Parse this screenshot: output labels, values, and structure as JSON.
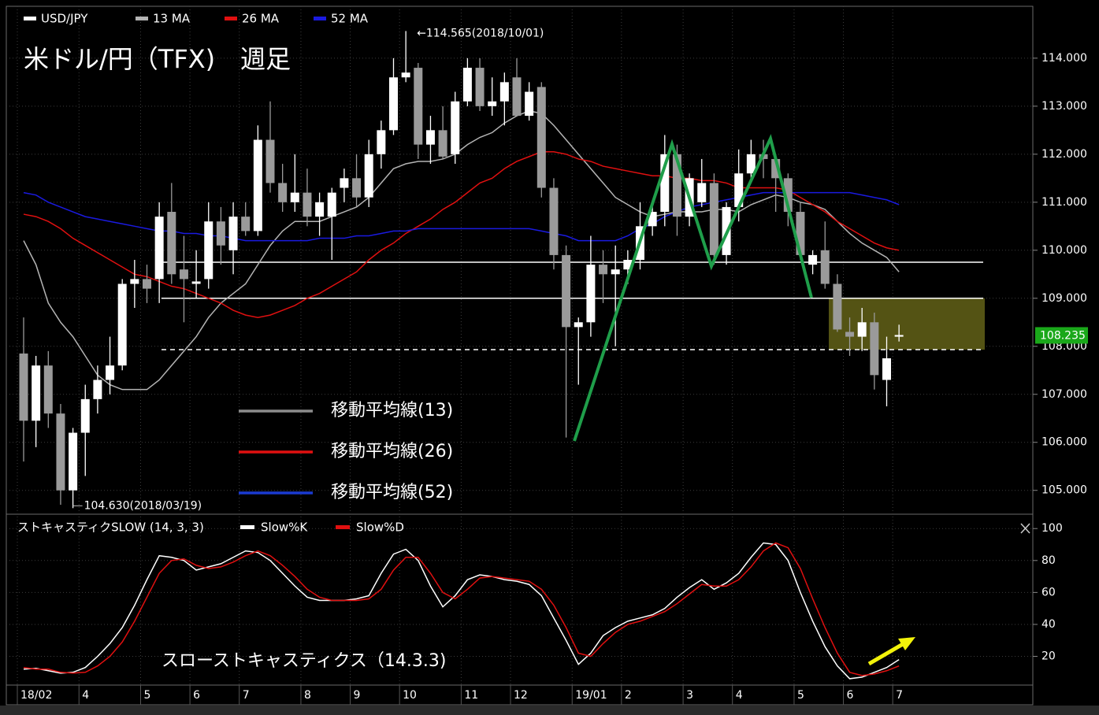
{
  "chart_data": [
    {
      "type": "candlestick",
      "title": "米ドル/円（TFX)　週足",
      "categories": [
        "18/02",
        null,
        null,
        null,
        null,
        "4",
        null,
        null,
        null,
        null,
        "5",
        null,
        null,
        null,
        "6",
        null,
        null,
        null,
        "7",
        null,
        null,
        null,
        null,
        "8",
        null,
        null,
        null,
        "9",
        null,
        null,
        null,
        "10",
        null,
        null,
        null,
        null,
        "11",
        null,
        null,
        null,
        "12",
        null,
        null,
        null,
        null,
        "19/01",
        null,
        null,
        null,
        "2",
        null,
        null,
        null,
        null,
        "3",
        null,
        null,
        null,
        "4",
        null,
        null,
        null,
        null,
        "5",
        null,
        null,
        null,
        "6",
        null,
        null,
        null,
        "7"
      ],
      "series": [
        {
          "name": "USD/JPY",
          "type": "candlestick",
          "color": "#ffffff",
          "down_color": "#9a9a9a",
          "open": [
            107.85,
            106.45,
            107.6,
            106.6,
            105.0,
            106.2,
            106.9,
            107.3,
            107.6,
            109.3,
            109.4,
            109.4,
            110.8,
            109.6,
            109.3,
            109.4,
            110.6,
            110.0,
            110.7,
            110.4,
            112.3,
            111.4,
            111.0,
            111.2,
            110.7,
            110.7,
            111.3,
            111.5,
            111.1,
            112.0,
            112.5,
            113.6,
            113.8,
            112.2,
            112.5,
            112.0,
            113.1,
            113.8,
            113.0,
            113.1,
            113.6,
            112.8,
            113.4,
            111.3,
            109.9,
            108.4,
            108.5,
            109.7,
            109.5,
            109.6,
            109.8,
            110.5,
            110.8,
            112.0,
            110.7,
            111.0,
            111.4,
            109.9,
            110.9,
            111.6,
            112.0,
            111.9,
            111.5,
            110.8,
            109.7,
            110.0,
            109.3,
            108.3,
            108.2,
            108.5,
            107.3,
            108.2
          ],
          "high": [
            108.6,
            107.8,
            107.9,
            106.8,
            106.3,
            107.2,
            107.6,
            108.2,
            109.4,
            109.8,
            109.7,
            111.0,
            111.4,
            110.3,
            110.0,
            111.0,
            110.9,
            111.0,
            111.0,
            112.6,
            113.1,
            111.8,
            112.0,
            111.7,
            111.2,
            111.3,
            111.7,
            112.0,
            112.3,
            112.7,
            114.0,
            114.565,
            113.9,
            112.8,
            113.0,
            113.3,
            114.0,
            114.0,
            113.6,
            113.7,
            114.0,
            113.5,
            113.5,
            111.5,
            110.1,
            108.6,
            110.3,
            110.0,
            110.1,
            110.0,
            111.0,
            111.0,
            112.4,
            112.2,
            111.6,
            111.9,
            111.6,
            111.0,
            112.1,
            112.3,
            112.3,
            112.0,
            111.6,
            111.0,
            110.0,
            110.6,
            109.5,
            108.6,
            108.8,
            108.7,
            108.2,
            108.45
          ],
          "low": [
            105.6,
            105.9,
            106.3,
            104.7,
            104.63,
            105.3,
            106.6,
            107.0,
            107.5,
            108.8,
            108.9,
            108.9,
            109.3,
            108.5,
            109.0,
            109.2,
            109.7,
            109.5,
            110.3,
            110.3,
            111.2,
            110.8,
            110.8,
            110.5,
            110.3,
            109.8,
            111.0,
            110.9,
            110.9,
            111.7,
            112.4,
            113.5,
            111.9,
            111.8,
            111.9,
            111.8,
            113.0,
            112.9,
            112.8,
            112.6,
            112.8,
            112.7,
            111.1,
            109.6,
            106.1,
            107.2,
            108.2,
            108.9,
            108.0,
            109.3,
            109.6,
            110.3,
            110.5,
            110.3,
            110.5,
            110.9,
            109.7,
            109.7,
            110.6,
            111.4,
            111.5,
            110.8,
            110.5,
            109.8,
            109.5,
            109.2,
            108.3,
            107.8,
            107.9,
            107.1,
            106.75,
            108.1
          ],
          "close": [
            106.45,
            107.6,
            106.6,
            105.0,
            106.2,
            106.9,
            107.3,
            107.6,
            109.3,
            109.4,
            109.2,
            110.7,
            109.5,
            109.4,
            109.35,
            110.6,
            110.1,
            110.7,
            110.4,
            112.3,
            111.4,
            111.0,
            111.2,
            110.7,
            111.0,
            111.2,
            111.5,
            111.1,
            112.0,
            112.5,
            113.6,
            113.7,
            112.2,
            112.5,
            111.95,
            113.1,
            113.8,
            113.0,
            113.1,
            113.5,
            112.8,
            113.3,
            111.3,
            109.9,
            108.4,
            108.5,
            109.7,
            109.5,
            109.6,
            109.8,
            110.5,
            110.8,
            112.0,
            110.7,
            111.5,
            111.4,
            109.9,
            110.9,
            111.6,
            112.0,
            111.9,
            111.5,
            110.8,
            109.9,
            109.9,
            109.3,
            108.35,
            108.2,
            108.5,
            107.4,
            107.75,
            108.235
          ]
        },
        {
          "name": "13 MA",
          "type": "line",
          "color": "#b4b4b4",
          "values": [
            110.2,
            109.7,
            108.9,
            108.5,
            108.2,
            107.8,
            107.4,
            107.2,
            107.1,
            107.1,
            107.1,
            107.3,
            107.6,
            107.9,
            108.2,
            108.6,
            108.9,
            109.1,
            109.3,
            109.7,
            110.1,
            110.4,
            110.6,
            110.6,
            110.6,
            110.7,
            110.8,
            110.9,
            111.1,
            111.4,
            111.7,
            111.8,
            111.85,
            111.85,
            111.9,
            112.0,
            112.2,
            112.35,
            112.45,
            112.65,
            112.8,
            112.9,
            112.85,
            112.6,
            112.3,
            112.0,
            111.7,
            111.4,
            111.1,
            110.95,
            110.8,
            110.7,
            110.75,
            110.8,
            110.8,
            110.8,
            110.85,
            110.85,
            110.8,
            110.95,
            111.05,
            111.15,
            111.1,
            111.0,
            110.95,
            110.85,
            110.6,
            110.35,
            110.15,
            110.0,
            109.85,
            109.55
          ]
        },
        {
          "name": "26 MA",
          "type": "line",
          "color": "#e01010",
          "values": [
            110.75,
            110.7,
            110.6,
            110.45,
            110.25,
            110.1,
            109.95,
            109.8,
            109.65,
            109.5,
            109.45,
            109.35,
            109.25,
            109.2,
            109.1,
            109.0,
            108.9,
            108.75,
            108.65,
            108.6,
            108.65,
            108.75,
            108.85,
            109.0,
            109.1,
            109.25,
            109.4,
            109.55,
            109.8,
            110.0,
            110.15,
            110.35,
            110.5,
            110.65,
            110.85,
            111.0,
            111.2,
            111.4,
            111.5,
            111.7,
            111.85,
            111.95,
            112.05,
            112.05,
            112.0,
            111.9,
            111.85,
            111.75,
            111.7,
            111.65,
            111.6,
            111.55,
            111.55,
            111.5,
            111.5,
            111.45,
            111.45,
            111.4,
            111.3,
            111.3,
            111.3,
            111.3,
            111.25,
            111.1,
            110.95,
            110.8,
            110.6,
            110.45,
            110.3,
            110.15,
            110.05,
            110.0
          ]
        },
        {
          "name": "52 MA",
          "type": "line",
          "color": "#1a1ae0",
          "values": [
            111.2,
            111.15,
            111.0,
            110.9,
            110.8,
            110.7,
            110.65,
            110.6,
            110.55,
            110.5,
            110.45,
            110.4,
            110.4,
            110.35,
            110.35,
            110.3,
            110.3,
            110.25,
            110.2,
            110.2,
            110.2,
            110.2,
            110.2,
            110.2,
            110.25,
            110.25,
            110.25,
            110.3,
            110.3,
            110.35,
            110.4,
            110.4,
            110.45,
            110.45,
            110.45,
            110.45,
            110.45,
            110.45,
            110.45,
            110.45,
            110.45,
            110.45,
            110.4,
            110.35,
            110.3,
            110.2,
            110.2,
            110.2,
            110.2,
            110.3,
            110.45,
            110.55,
            110.7,
            110.8,
            110.9,
            110.95,
            111.0,
            111.05,
            111.1,
            111.15,
            111.2,
            111.2,
            111.2,
            111.2,
            111.2,
            111.2,
            111.2,
            111.2,
            111.15,
            111.1,
            111.05,
            110.95
          ]
        }
      ],
      "ylim": [
        104.52,
        115.08
      ],
      "yticks": [
        {
          "value": 105,
          "label": "105.000"
        },
        {
          "value": 106,
          "label": "106.000"
        },
        {
          "value": 107,
          "label": "107.000"
        },
        {
          "value": 108,
          "label": "108.000"
        },
        {
          "value": 109,
          "label": "109.000"
        },
        {
          "value": 110,
          "label": "110.000"
        },
        {
          "value": 111,
          "label": "111.000"
        },
        {
          "value": 112,
          "label": "112.000"
        },
        {
          "value": 113,
          "label": "113.000"
        },
        {
          "value": 114,
          "label": "114.000"
        }
      ],
      "grid": true,
      "last_price": {
        "value": 108.235,
        "label": "108.235",
        "color": "#1aa81a"
      },
      "annotations": [
        {
          "text": "←114.565(2018/10/01)",
          "value": 114.565
        },
        {
          "text": "104.630(2018/03/19)",
          "value": 104.63
        }
      ],
      "levels": [
        {
          "value": 109.75,
          "style": "solid"
        },
        {
          "value": 109.0,
          "style": "solid"
        },
        {
          "value": 107.93,
          "style": "dashed"
        }
      ],
      "zone": {
        "low": 107.93,
        "high": 109.0,
        "color": "#545314"
      },
      "ma_legend": [
        {
          "label": "移動平均線(13)",
          "color": "#8c8c8c"
        },
        {
          "label": "移動平均線(26)",
          "color": "#e01010"
        },
        {
          "label": "移動平均線(52)",
          "color": "#1a3ad0"
        }
      ]
    },
    {
      "type": "line",
      "title": "ストキャスティクSLOW (14, 3, 3)",
      "annotation": "スローストキャスティクス（14.3.3)",
      "series": [
        {
          "name": "Slow%K",
          "color": "#ffffff",
          "values": [
            12,
            12.5,
            11,
            9.5,
            10,
            13,
            20,
            28,
            38,
            52,
            68,
            83,
            82,
            80,
            74,
            76,
            78,
            82,
            86,
            85,
            80,
            72,
            64,
            57,
            55,
            55,
            55,
            56,
            58,
            72,
            84,
            87,
            80,
            64,
            51,
            58,
            68,
            71,
            70,
            68,
            67,
            65,
            58,
            44,
            30,
            15,
            22,
            33,
            38,
            42,
            44,
            46,
            50,
            57,
            63,
            68,
            62,
            66,
            72,
            82,
            91,
            90,
            80,
            60,
            42,
            26,
            14,
            6,
            7,
            10,
            13,
            18
          ]
        },
        {
          "name": "Slow%D",
          "color": "#e01010",
          "values": [
            13,
            12,
            12,
            10,
            9.5,
            10,
            14,
            20,
            29,
            42,
            57,
            72,
            80,
            81,
            77,
            75,
            76,
            79,
            83,
            86,
            83,
            77,
            70,
            62,
            57,
            55,
            55,
            55,
            56,
            62,
            74,
            82,
            82,
            72,
            60,
            56,
            62,
            69,
            70,
            69,
            68,
            67,
            62,
            52,
            38,
            22,
            20,
            28,
            35,
            40,
            42,
            45,
            48,
            53,
            59,
            65,
            64,
            64,
            68,
            76,
            86,
            91,
            88,
            75,
            56,
            38,
            22,
            10,
            8,
            9,
            11,
            14
          ]
        }
      ],
      "ylim": [
        3,
        108
      ],
      "yticks": [
        20,
        40,
        60,
        80,
        100
      ],
      "grid": true
    }
  ]
}
